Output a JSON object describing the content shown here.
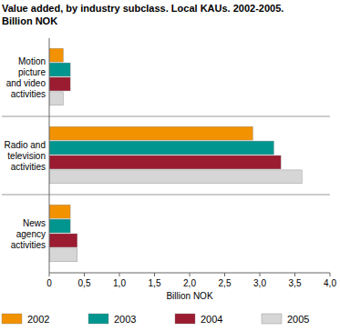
{
  "chart_data": {
    "type": "bar",
    "orientation": "horizontal",
    "title": "Value added, by industry subclass. Local KAUs. 2002-2005.",
    "subtitle": "Billion NOK",
    "x_label": "Billion NOK",
    "categories": [
      "Motion picture and video activities",
      "Radio and television activities",
      "News agency activities"
    ],
    "series": [
      {
        "name": "2002",
        "color": "#f39200",
        "values": [
          0.2,
          2.9,
          0.3
        ]
      },
      {
        "name": "2003",
        "color": "#00968f",
        "values": [
          0.3,
          3.2,
          0.3
        ]
      },
      {
        "name": "2004",
        "color": "#9b1b30",
        "values": [
          0.3,
          3.3,
          0.4
        ]
      },
      {
        "name": "2005",
        "color": "#d6d6d6",
        "values": [
          0.2,
          3.6,
          0.4
        ]
      }
    ],
    "xlim": [
      0,
      4
    ],
    "xticks": [
      0,
      {
        "value": 0.5,
        "label": "0,5"
      },
      {
        "value": 1,
        "label": "1,0"
      },
      {
        "value": 1.5,
        "label": "1,5"
      },
      {
        "value": 2,
        "label": "2,0"
      },
      {
        "value": 2.5,
        "label": "2,5"
      },
      {
        "value": 3,
        "label": "3,0"
      },
      {
        "value": 3.5,
        "label": "3,5"
      },
      {
        "value": 4,
        "label": "4,0"
      }
    ],
    "grid": false,
    "legend": "bottom"
  }
}
